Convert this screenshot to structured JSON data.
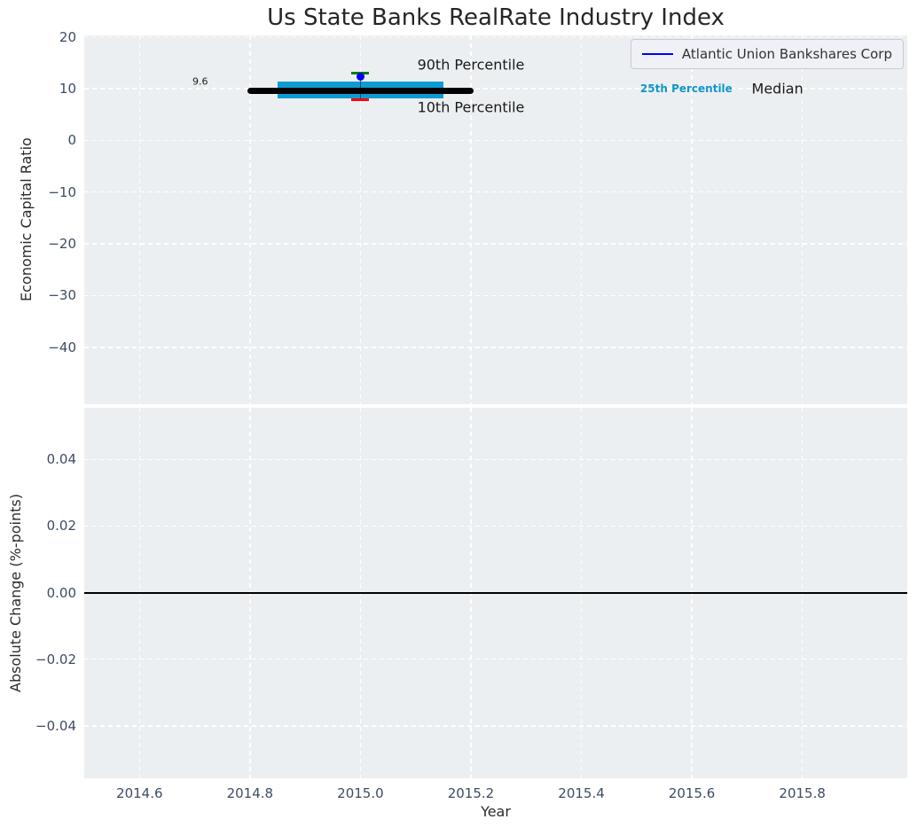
{
  "chart_data": {
    "type": "line",
    "title": "Us State Banks RealRate Industry Index",
    "xlabel": "Year",
    "legend": [
      {
        "label": "Atlantic Union Bankshares Corp",
        "color": "#0000ff"
      }
    ],
    "xlim": [
      2014.5,
      2015.99
    ],
    "xticks": [
      {
        "v": 2014.6,
        "label": "2014.6"
      },
      {
        "v": 2014.8,
        "label": "2014.8"
      },
      {
        "v": 2015.0,
        "label": "2015.0"
      },
      {
        "v": 2015.2,
        "label": "2015.2"
      },
      {
        "v": 2015.4,
        "label": "2015.4"
      },
      {
        "v": 2015.6,
        "label": "2015.6"
      },
      {
        "v": 2015.8,
        "label": "2015.8"
      }
    ],
    "top": {
      "ylabel": "Economic Capital Ratio",
      "ylim": [
        -51,
        20.3
      ],
      "grid": true,
      "yticks": [
        {
          "v": 20,
          "label": "20"
        },
        {
          "v": 10,
          "label": "10"
        },
        {
          "v": 0,
          "label": "0"
        },
        {
          "v": -10,
          "label": "−10"
        },
        {
          "v": -20,
          "label": "−20"
        },
        {
          "v": -30,
          "label": "−30"
        },
        {
          "v": -40,
          "label": "−40"
        }
      ],
      "data": {
        "year": 2015.0,
        "company": {
          "name": "Atlantic Union Bankshares Corp",
          "value": 12.4,
          "color": "#0000ff"
        },
        "median": {
          "value": 9.6,
          "x_extent": [
            2014.795,
            2015.205
          ],
          "color": "#000000"
        },
        "iqr_band": {
          "p25": 8.2,
          "p75": 11.4,
          "x_extent": [
            2014.85,
            2015.15
          ],
          "color": "#0d9cd1"
        },
        "p90": {
          "value": 13.1,
          "half_width": 0.016,
          "color": "#008000"
        },
        "p10": {
          "value": 7.9,
          "half_width": 0.016,
          "color": "#ff0000"
        }
      },
      "annotations": [
        {
          "name": "median-value-label",
          "text": "9.6",
          "x": 2014.71,
          "y": 11.45,
          "size": 11,
          "color": "#1a1a1a"
        },
        {
          "name": "p90-annotation",
          "text": "90th Percentile",
          "x": 2015.2,
          "y": 14.7,
          "size": 16,
          "color": "#1a1a1a"
        },
        {
          "name": "p10-annotation",
          "text": "10th Percentile",
          "x": 2015.2,
          "y": 6.45,
          "size": 16,
          "color": "#1a1a1a"
        },
        {
          "name": "p25-annotation",
          "text": "25th Percentile",
          "x": 2015.59,
          "y": 10.05,
          "size": 12,
          "color": "#1295c9",
          "weight": "bold"
        },
        {
          "name": "median-annotation",
          "text": "Median",
          "x": 2015.755,
          "y": 10.0,
          "size": 16,
          "color": "#1a1a1a"
        }
      ]
    },
    "bottom": {
      "ylabel": "Absolute Change (%-points)",
      "ylim": [
        -0.0557,
        0.0555
      ],
      "grid": true,
      "yticks": [
        {
          "v": 0.04,
          "label": "0.04"
        },
        {
          "v": 0.02,
          "label": "0.02"
        },
        {
          "v": 0,
          "label": "0.00"
        },
        {
          "v": -0.02,
          "label": "−0.02"
        },
        {
          "v": -0.04,
          "label": "−0.04"
        }
      ],
      "zero_line": {
        "value": 0,
        "color": "#000000"
      }
    }
  }
}
